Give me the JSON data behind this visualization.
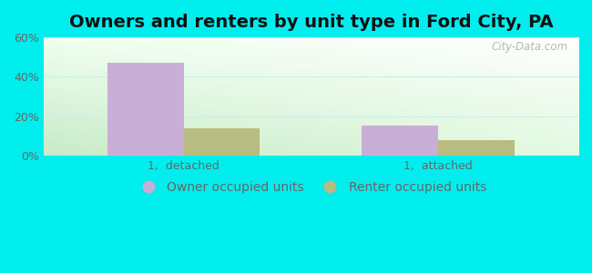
{
  "title": "Owners and renters by unit type in Ford City, PA",
  "categories": [
    "1,  detached",
    "1,  attached"
  ],
  "owner_values": [
    47,
    15
  ],
  "renter_values": [
    14,
    8
  ],
  "owner_color": "#c9aed6",
  "renter_color": "#b8bc80",
  "ylim": [
    0,
    60
  ],
  "yticks": [
    0,
    20,
    40,
    60
  ],
  "ytick_labels": [
    "0%",
    "20%",
    "40%",
    "60%"
  ],
  "bar_width": 0.3,
  "outer_bg": "#00eeee",
  "legend_owner": "Owner occupied units",
  "legend_renter": "Renter occupied units",
  "watermark": "City-Data.com",
  "title_fontsize": 14,
  "tick_fontsize": 9,
  "legend_fontsize": 10,
  "grid_color": "#cceeee",
  "tick_color": "#666666"
}
